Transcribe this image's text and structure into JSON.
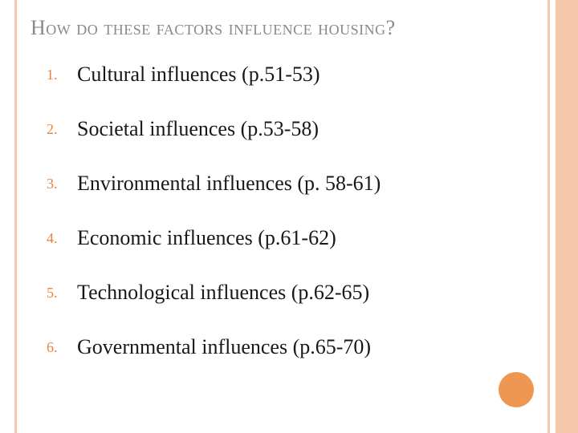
{
  "colors": {
    "stripe": "#f6c7a8",
    "title": "#898989",
    "number": "#e8833f",
    "body_text": "#181818",
    "circle": "#ed9752",
    "background": "#ffffff"
  },
  "typography": {
    "title_fontsize": 26,
    "number_fontsize": 18,
    "item_fontsize": 26,
    "title_weight": "normal",
    "item_weight": "normal"
  },
  "layout": {
    "circle_diameter": 44
  },
  "title": "How do these factors influence housing?",
  "items": [
    "Cultural influences (p.51-53)",
    "Societal influences (p.53-58)",
    "Environmental influences (p. 58-61)",
    "Economic influences (p.61-62)",
    "Technological influences (p.62-65)",
    "Governmental influences (p.65-70)"
  ]
}
